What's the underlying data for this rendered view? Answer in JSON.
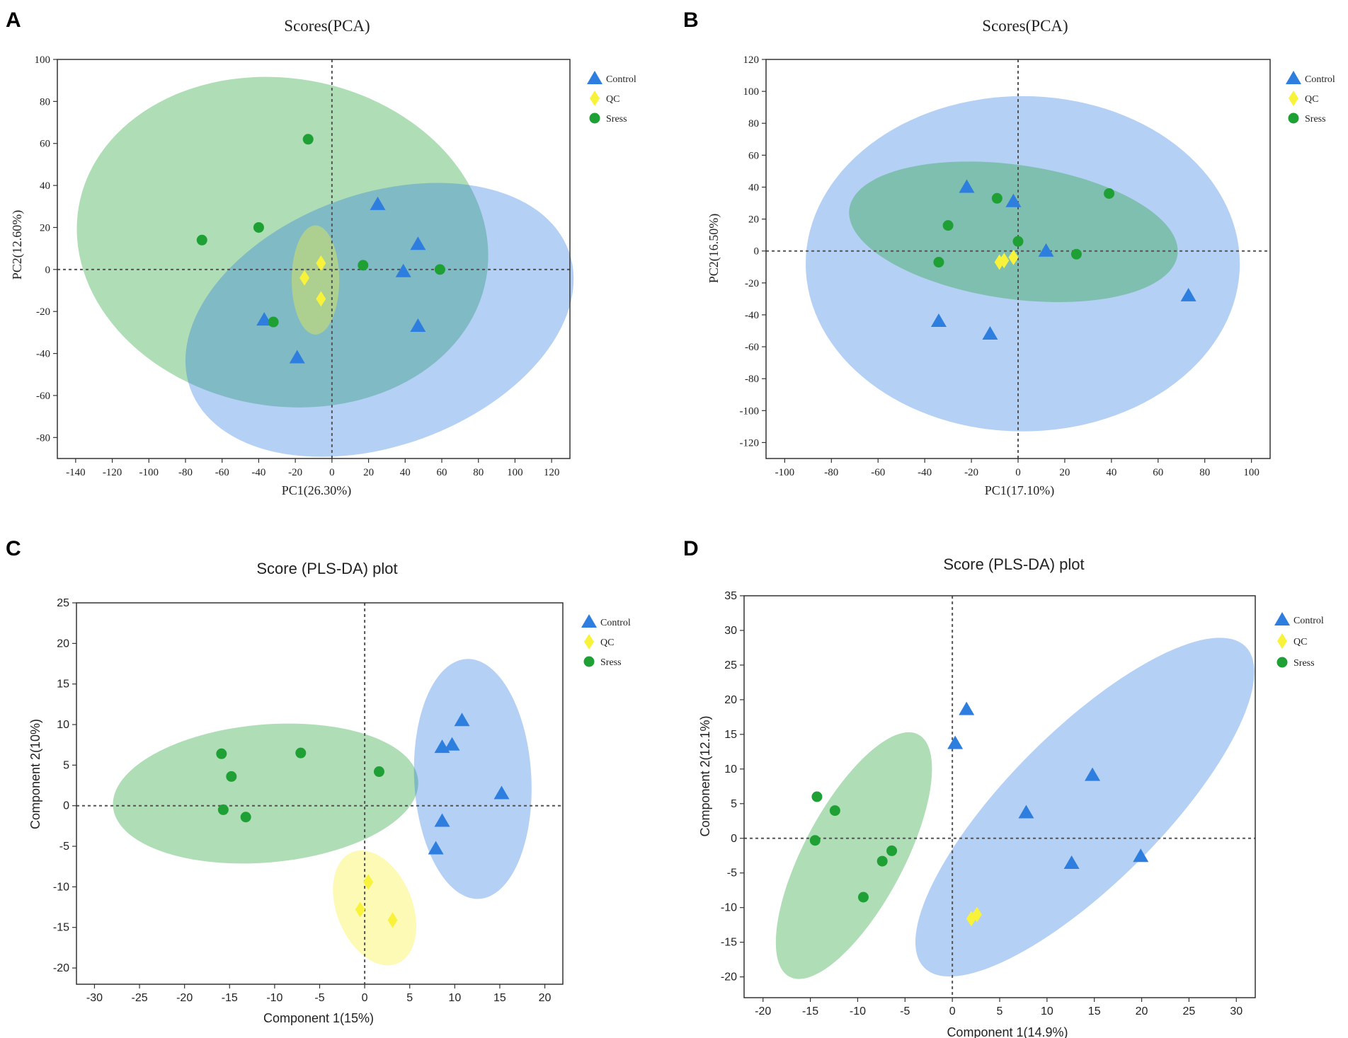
{
  "figure": {
    "colors": {
      "control": "#2e7ee0",
      "qc": "#f8f23a",
      "stress": "#1fa035",
      "frame": "#333333",
      "background": "#ffffff"
    },
    "legend": {
      "items": [
        {
          "key": "control",
          "label": "Control",
          "marker": "triangle-icon"
        },
        {
          "key": "qc",
          "label": "QC",
          "marker": "diamond-icon"
        },
        {
          "key": "stress",
          "label": "Sress",
          "marker": "circle-icon"
        }
      ]
    }
  },
  "chart_data": [
    {
      "panel": "A",
      "type": "scatter",
      "title": "Scores(PCA)",
      "xlabel": "PC1(26.30%)",
      "ylabel": "PC2(12.60%)",
      "xlim": [
        -150,
        130
      ],
      "ylim": [
        -90,
        100
      ],
      "xticks": [
        -140,
        -120,
        -100,
        -80,
        -60,
        -40,
        -20,
        0,
        20,
        40,
        60,
        80,
        100,
        120
      ],
      "yticks": [
        -80,
        -60,
        -40,
        -20,
        0,
        20,
        40,
        60,
        80,
        100
      ],
      "legend_position": "top-right",
      "series": [
        {
          "name": "Control",
          "key": "control",
          "marker": "triangle",
          "points": [
            [
              25,
              31
            ],
            [
              47,
              12
            ],
            [
              39,
              -1
            ],
            [
              47,
              -27
            ],
            [
              -37,
              -24
            ],
            [
              -19,
              -42
            ]
          ]
        },
        {
          "name": "QC",
          "key": "qc",
          "marker": "diamond",
          "points": [
            [
              -6,
              3
            ],
            [
              -15,
              -4
            ],
            [
              -6,
              -14
            ]
          ]
        },
        {
          "name": "Sress",
          "key": "stress",
          "marker": "circle",
          "points": [
            [
              -13,
              62
            ],
            [
              -71,
              14
            ],
            [
              -40,
              20
            ],
            [
              17,
              2
            ],
            [
              59,
              0
            ],
            [
              -32,
              -25
            ]
          ]
        }
      ],
      "ellipses": [
        {
          "key": "stress",
          "cx": -27,
          "cy": 13,
          "rx": 113,
          "ry": 78,
          "angle": -10
        },
        {
          "key": "control",
          "cx": 26,
          "cy": -24,
          "rx": 110,
          "ry": 60,
          "angle": 20
        },
        {
          "key": "qc",
          "cx": -9,
          "cy": -5,
          "rx": 13,
          "ry": 26,
          "angle": 0
        }
      ]
    },
    {
      "panel": "B",
      "type": "scatter",
      "title": "Scores(PCA)",
      "xlabel": "PC1(17.10%)",
      "ylabel": "PC2(16.50%)",
      "xlim": [
        -108,
        108
      ],
      "ylim": [
        -130,
        120
      ],
      "xticks": [
        -100,
        -80,
        -60,
        -40,
        -20,
        0,
        20,
        40,
        60,
        80,
        100
      ],
      "yticks": [
        -120,
        -100,
        -80,
        -60,
        -40,
        -20,
        0,
        20,
        40,
        60,
        80,
        100,
        120
      ],
      "legend_position": "top-right",
      "series": [
        {
          "name": "Control",
          "key": "control",
          "marker": "triangle",
          "points": [
            [
              -22,
              40
            ],
            [
              -2,
              31
            ],
            [
              12,
              0
            ],
            [
              -34,
              -44
            ],
            [
              -12,
              -52
            ],
            [
              73,
              -28
            ]
          ]
        },
        {
          "name": "QC",
          "key": "qc",
          "marker": "diamond",
          "points": [
            [
              -8,
              -7
            ],
            [
              -6,
              -6
            ],
            [
              -2,
              -4
            ]
          ]
        },
        {
          "name": "Sress",
          "key": "stress",
          "marker": "circle",
          "points": [
            [
              -9,
              33
            ],
            [
              -30,
              16
            ],
            [
              -34,
              -7
            ],
            [
              0,
              6
            ],
            [
              25,
              -2
            ],
            [
              39,
              36
            ]
          ]
        }
      ],
      "ellipses": [
        {
          "key": "control",
          "cx": 2,
          "cy": -8,
          "rx": 93,
          "ry": 105,
          "angle": 0
        },
        {
          "key": "stress",
          "cx": -2,
          "cy": 12,
          "rx": 71,
          "ry": 42,
          "angle": -8
        }
      ]
    },
    {
      "panel": "C",
      "type": "scatter",
      "title": "Score (PLS-DA) plot",
      "xlabel": "Component 1(15%)",
      "ylabel": "Component 2(10%)",
      "xlim": [
        -32,
        22
      ],
      "ylim": [
        -22,
        25
      ],
      "xticks": [
        -30,
        -25,
        -20,
        -15,
        -10,
        -5,
        0,
        5,
        10,
        15,
        20
      ],
      "yticks": [
        -20,
        -15,
        -10,
        -5,
        0,
        5,
        10,
        15,
        20,
        25
      ],
      "legend_position": "top-right",
      "series": [
        {
          "name": "Control",
          "key": "control",
          "marker": "triangle",
          "points": [
            [
              10.8,
              10.5
            ],
            [
              8.6,
              7.2
            ],
            [
              9.7,
              7.5
            ],
            [
              15.2,
              1.5
            ],
            [
              8.6,
              -1.9
            ],
            [
              7.9,
              -5.3
            ]
          ]
        },
        {
          "name": "QC",
          "key": "qc",
          "marker": "diamond",
          "points": [
            [
              0.4,
              -9.4
            ],
            [
              -0.5,
              -12.8
            ],
            [
              3.1,
              -14.1
            ]
          ]
        },
        {
          "name": "Sress",
          "key": "stress",
          "marker": "circle",
          "points": [
            [
              -15.9,
              6.4
            ],
            [
              -7.1,
              6.5
            ],
            [
              -14.8,
              3.6
            ],
            [
              1.6,
              4.2
            ],
            [
              -15.7,
              -0.5
            ],
            [
              -13.2,
              -1.4
            ]
          ]
        }
      ],
      "ellipses": [
        {
          "key": "stress",
          "cx": -11,
          "cy": 1.5,
          "rx": 17,
          "ry": 8.5,
          "angle": 5
        },
        {
          "key": "control",
          "cx": 12,
          "cy": 3.3,
          "rx": 6.5,
          "ry": 14.8,
          "angle": 3
        },
        {
          "key": "qc",
          "cx": 1.1,
          "cy": -12.6,
          "rx": 4.2,
          "ry": 7.4,
          "angle": 22
        }
      ]
    },
    {
      "panel": "D",
      "type": "scatter",
      "title": "Score (PLS-DA) plot",
      "xlabel": "Component 1(14.9%)",
      "ylabel": "Component 2(12.1%)",
      "xlim": [
        -22,
        32
      ],
      "ylim": [
        -23,
        35
      ],
      "xticks": [
        -20,
        -15,
        -10,
        -5,
        0,
        5,
        10,
        15,
        20,
        25,
        30
      ],
      "yticks": [
        -20,
        -15,
        -10,
        -5,
        0,
        5,
        10,
        15,
        20,
        25,
        30,
        35
      ],
      "legend_position": "top-right",
      "series": [
        {
          "name": "Control",
          "key": "control",
          "marker": "triangle",
          "points": [
            [
              1.5,
              18.6
            ],
            [
              0.3,
              13.7
            ],
            [
              14.8,
              9.1
            ],
            [
              7.8,
              3.7
            ],
            [
              12.6,
              -3.6
            ],
            [
              19.9,
              -2.6
            ]
          ]
        },
        {
          "name": "QC",
          "key": "qc",
          "marker": "diamond",
          "points": [
            [
              2.0,
              -11.6
            ],
            [
              2.6,
              -11.0
            ]
          ]
        },
        {
          "name": "Sress",
          "key": "stress",
          "marker": "circle",
          "points": [
            [
              -14.3,
              6.0
            ],
            [
              -12.4,
              4.0
            ],
            [
              -14.5,
              -0.3
            ],
            [
              -6.4,
              -1.8
            ],
            [
              -7.4,
              -3.3
            ],
            [
              -9.4,
              -8.5
            ]
          ]
        }
      ],
      "ellipses": [
        {
          "key": "control",
          "cx": 14,
          "cy": 4.5,
          "rx": 24,
          "ry": 11,
          "angle": 45
        },
        {
          "key": "stress",
          "cx": -10.4,
          "cy": -2.5,
          "rx": 14.5,
          "ry": 7.2,
          "angle": 62
        }
      ]
    }
  ]
}
